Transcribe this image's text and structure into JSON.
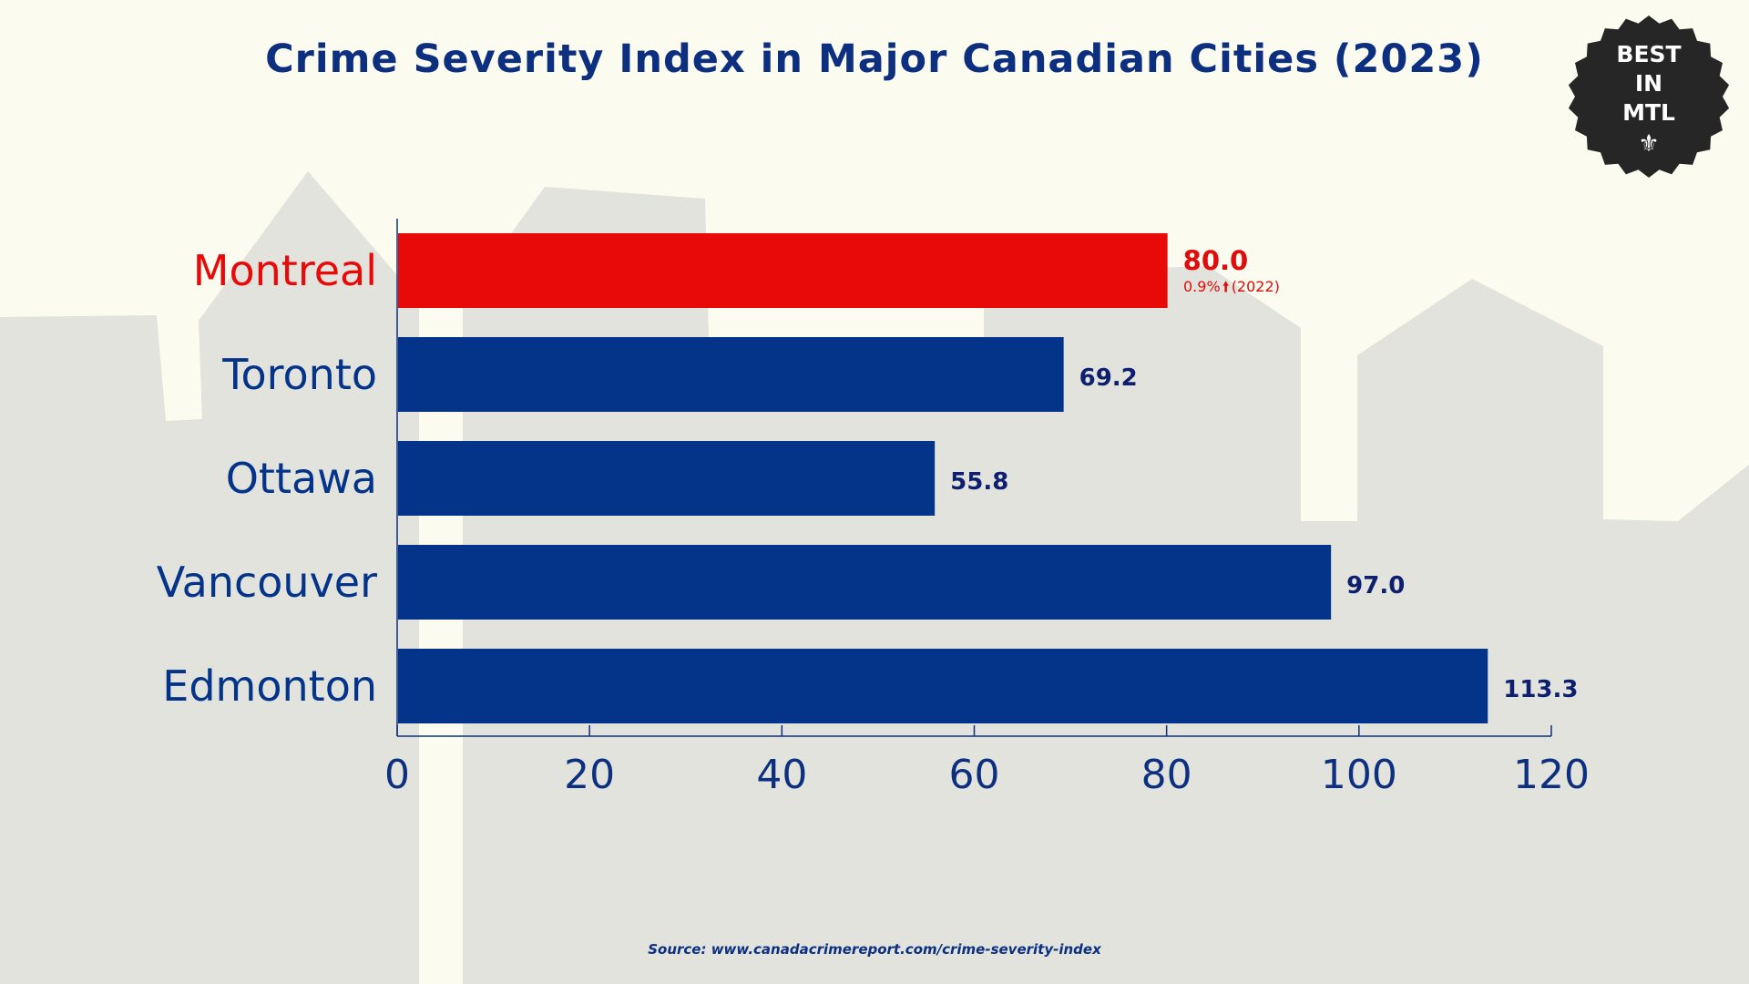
{
  "chart_data": {
    "type": "bar",
    "orientation": "horizontal",
    "title": "Crime Severity Index in Major Canadian Cities (2023)",
    "categories": [
      "Montreal",
      "Toronto",
      "Ottawa",
      "Vancouver",
      "Edmonton"
    ],
    "values": [
      80.0,
      69.2,
      55.8,
      97.0,
      113.3
    ],
    "value_labels": [
      "80.0",
      "69.2",
      "55.8",
      "97.0",
      "113.3"
    ],
    "highlight": {
      "category": "Montreal",
      "note_value": "0.9%",
      "note_year": "(2022)"
    },
    "xlim": [
      0,
      120
    ],
    "xticks": [
      "0",
      "20",
      "40",
      "60",
      "80",
      "100",
      "120"
    ],
    "tick_values": [
      0,
      20,
      40,
      60,
      80,
      100,
      120
    ],
    "grid": false,
    "xlabel": "",
    "ylabel": "",
    "colors": {
      "highlight": "#e80909",
      "default": "#03348a",
      "axis": "#0d2f80",
      "highlight_label": "#e10b0b",
      "default_label": "#0d1f6e"
    }
  },
  "badge": {
    "lines": [
      "BEST",
      "IN",
      "MTL"
    ],
    "icon": "fleur-de-lis-icon",
    "color": "#262626"
  },
  "source": "Source: www.canadacrimereport.com/crime-severity-index"
}
